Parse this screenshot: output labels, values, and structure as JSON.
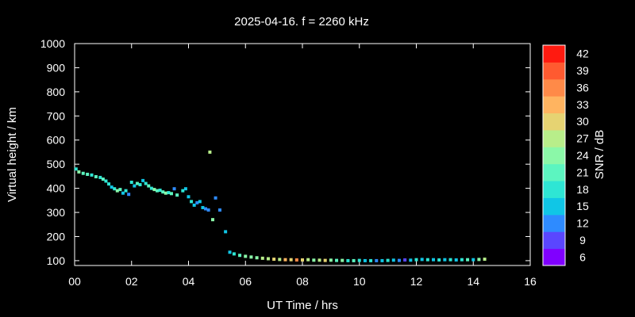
{
  "chart_data": {
    "type": "scatter",
    "title": "2025-04-16. f = 2260 kHz",
    "xlabel": "UT Time / hrs",
    "ylabel": "Virtual height / km",
    "colorbar_label": "SNR / dB",
    "xlim": [
      0,
      16
    ],
    "ylim": [
      80,
      1000
    ],
    "x_ticks": [
      "00",
      "02",
      "04",
      "06",
      "08",
      "10",
      "12",
      "14",
      "16"
    ],
    "y_ticks": [
      100,
      200,
      300,
      400,
      500,
      600,
      700,
      800,
      900,
      1000
    ],
    "colorbar_ticks": [
      6,
      9,
      12,
      15,
      18,
      21,
      24,
      27,
      30,
      33,
      36,
      39,
      42
    ],
    "colorbar_colors": [
      "#8000ff",
      "#5a46ff",
      "#2e8bff",
      "#10c6e6",
      "#2ee6d4",
      "#5cf5c0",
      "#8bf8a8",
      "#b8ee8a",
      "#e6d372",
      "#ffb460",
      "#ff8a48",
      "#ff5a30",
      "#ff1a10"
    ],
    "grid": false,
    "points": [
      {
        "x": 0.05,
        "y": 480,
        "snr": 18
      },
      {
        "x": 0.15,
        "y": 468,
        "snr": 24
      },
      {
        "x": 0.3,
        "y": 462,
        "snr": 21
      },
      {
        "x": 0.45,
        "y": 458,
        "snr": 21
      },
      {
        "x": 0.6,
        "y": 455,
        "snr": 18
      },
      {
        "x": 0.75,
        "y": 448,
        "snr": 21
      },
      {
        "x": 0.9,
        "y": 445,
        "snr": 18
      },
      {
        "x": 1.0,
        "y": 438,
        "snr": 21
      },
      {
        "x": 1.1,
        "y": 430,
        "snr": 18
      },
      {
        "x": 1.2,
        "y": 418,
        "snr": 18
      },
      {
        "x": 1.3,
        "y": 405,
        "snr": 15
      },
      {
        "x": 1.4,
        "y": 398,
        "snr": 18
      },
      {
        "x": 1.5,
        "y": 390,
        "snr": 24
      },
      {
        "x": 1.6,
        "y": 395,
        "snr": 21
      },
      {
        "x": 1.7,
        "y": 380,
        "snr": 15
      },
      {
        "x": 1.8,
        "y": 390,
        "snr": 18
      },
      {
        "x": 1.9,
        "y": 375,
        "snr": 12
      },
      {
        "x": 2.0,
        "y": 425,
        "snr": 18
      },
      {
        "x": 2.1,
        "y": 410,
        "snr": 15
      },
      {
        "x": 2.2,
        "y": 420,
        "snr": 21
      },
      {
        "x": 2.3,
        "y": 415,
        "snr": 18
      },
      {
        "x": 2.4,
        "y": 432,
        "snr": 15
      },
      {
        "x": 2.5,
        "y": 420,
        "snr": 18
      },
      {
        "x": 2.6,
        "y": 410,
        "snr": 21
      },
      {
        "x": 2.7,
        "y": 400,
        "snr": 18
      },
      {
        "x": 2.8,
        "y": 395,
        "snr": 24
      },
      {
        "x": 2.9,
        "y": 390,
        "snr": 21
      },
      {
        "x": 3.0,
        "y": 392,
        "snr": 18
      },
      {
        "x": 3.1,
        "y": 385,
        "snr": 21
      },
      {
        "x": 3.2,
        "y": 380,
        "snr": 24
      },
      {
        "x": 3.3,
        "y": 382,
        "snr": 18
      },
      {
        "x": 3.4,
        "y": 378,
        "snr": 21
      },
      {
        "x": 3.5,
        "y": 398,
        "snr": 12
      },
      {
        "x": 3.6,
        "y": 372,
        "snr": 21
      },
      {
        "x": 3.8,
        "y": 390,
        "snr": 18
      },
      {
        "x": 3.9,
        "y": 398,
        "snr": 15
      },
      {
        "x": 4.0,
        "y": 365,
        "snr": 15
      },
      {
        "x": 4.1,
        "y": 345,
        "snr": 18
      },
      {
        "x": 4.2,
        "y": 330,
        "snr": 15
      },
      {
        "x": 4.3,
        "y": 340,
        "snr": 12
      },
      {
        "x": 4.4,
        "y": 345,
        "snr": 15
      },
      {
        "x": 4.5,
        "y": 320,
        "snr": 15
      },
      {
        "x": 4.6,
        "y": 315,
        "snr": 12
      },
      {
        "x": 4.7,
        "y": 310,
        "snr": 12
      },
      {
        "x": 4.75,
        "y": 550,
        "snr": 27
      },
      {
        "x": 4.85,
        "y": 270,
        "snr": 24
      },
      {
        "x": 4.95,
        "y": 360,
        "snr": 12
      },
      {
        "x": 5.1,
        "y": 310,
        "snr": 12
      },
      {
        "x": 5.3,
        "y": 220,
        "snr": 15
      },
      {
        "x": 5.45,
        "y": 135,
        "snr": 15
      },
      {
        "x": 5.6,
        "y": 128,
        "snr": 18
      },
      {
        "x": 5.8,
        "y": 122,
        "snr": 21
      },
      {
        "x": 6.0,
        "y": 118,
        "snr": 24
      },
      {
        "x": 6.2,
        "y": 115,
        "snr": 24
      },
      {
        "x": 6.4,
        "y": 112,
        "snr": 24
      },
      {
        "x": 6.6,
        "y": 110,
        "snr": 27
      },
      {
        "x": 6.8,
        "y": 108,
        "snr": 27
      },
      {
        "x": 7.0,
        "y": 106,
        "snr": 30
      },
      {
        "x": 7.2,
        "y": 105,
        "snr": 27
      },
      {
        "x": 7.4,
        "y": 104,
        "snr": 33
      },
      {
        "x": 7.6,
        "y": 104,
        "snr": 30
      },
      {
        "x": 7.8,
        "y": 103,
        "snr": 36
      },
      {
        "x": 8.0,
        "y": 103,
        "snr": 30
      },
      {
        "x": 8.2,
        "y": 104,
        "snr": 27
      },
      {
        "x": 8.4,
        "y": 102,
        "snr": 24
      },
      {
        "x": 8.6,
        "y": 102,
        "snr": 27
      },
      {
        "x": 8.8,
        "y": 101,
        "snr": 30
      },
      {
        "x": 9.0,
        "y": 102,
        "snr": 24
      },
      {
        "x": 9.2,
        "y": 101,
        "snr": 21
      },
      {
        "x": 9.4,
        "y": 101,
        "snr": 24
      },
      {
        "x": 9.6,
        "y": 100,
        "snr": 18
      },
      {
        "x": 9.8,
        "y": 100,
        "snr": 21
      },
      {
        "x": 10.0,
        "y": 101,
        "snr": 18
      },
      {
        "x": 10.2,
        "y": 100,
        "snr": 15
      },
      {
        "x": 10.4,
        "y": 100,
        "snr": 18
      },
      {
        "x": 10.6,
        "y": 100,
        "snr": 12
      },
      {
        "x": 10.8,
        "y": 100,
        "snr": 15
      },
      {
        "x": 11.0,
        "y": 101,
        "snr": 18
      },
      {
        "x": 11.2,
        "y": 102,
        "snr": 15
      },
      {
        "x": 11.4,
        "y": 101,
        "snr": 12
      },
      {
        "x": 11.6,
        "y": 103,
        "snr": 9
      },
      {
        "x": 11.8,
        "y": 102,
        "snr": 15
      },
      {
        "x": 12.0,
        "y": 104,
        "snr": 18
      },
      {
        "x": 12.2,
        "y": 105,
        "snr": 15
      },
      {
        "x": 12.4,
        "y": 104,
        "snr": 18
      },
      {
        "x": 12.6,
        "y": 104,
        "snr": 15
      },
      {
        "x": 12.8,
        "y": 103,
        "snr": 18
      },
      {
        "x": 13.0,
        "y": 104,
        "snr": 15
      },
      {
        "x": 13.2,
        "y": 104,
        "snr": 18
      },
      {
        "x": 13.4,
        "y": 103,
        "snr": 15
      },
      {
        "x": 13.6,
        "y": 104,
        "snr": 18
      },
      {
        "x": 13.8,
        "y": 104,
        "snr": 21
      },
      {
        "x": 14.0,
        "y": 104,
        "snr": 15
      },
      {
        "x": 14.2,
        "y": 105,
        "snr": 24
      },
      {
        "x": 14.4,
        "y": 106,
        "snr": 27
      }
    ]
  }
}
